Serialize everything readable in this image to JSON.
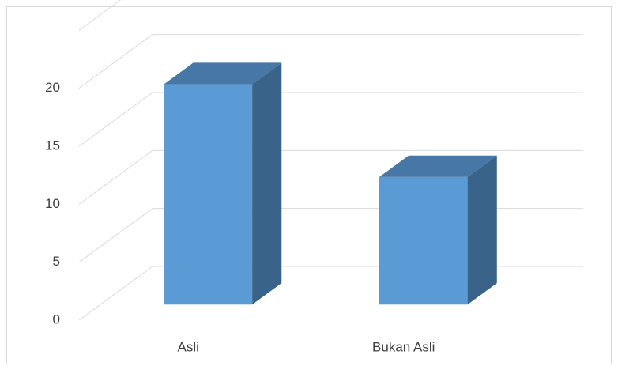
{
  "chart_data": {
    "type": "bar3d",
    "categories": [
      "Asli",
      "Bukan Asli"
    ],
    "values": [
      19,
      11
    ],
    "color": "#5b9bd5",
    "ylim": [
      0,
      25
    ],
    "yticks": [
      0,
      5,
      10,
      15,
      20
    ],
    "grid": true
  }
}
